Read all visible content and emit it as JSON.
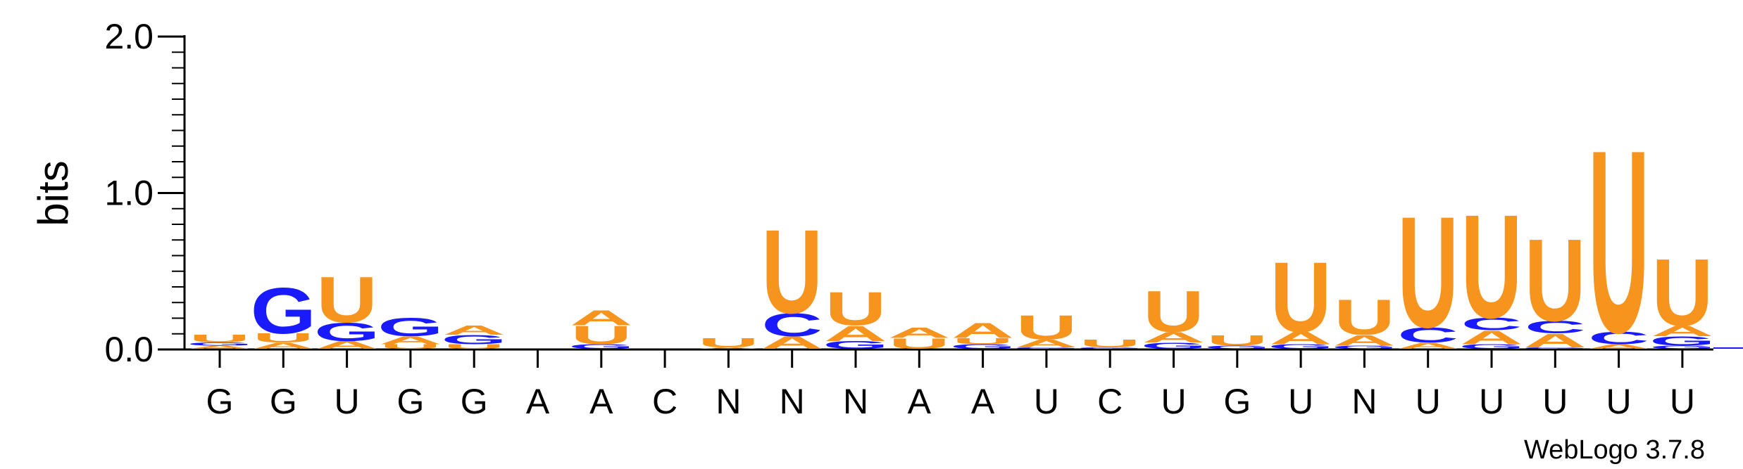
{
  "chart_data": {
    "type": "sequence-logo",
    "ylabel": "bits",
    "ylim": [
      0,
      2.0
    ],
    "yticks": [
      "0.0",
      "1.0",
      "2.0"
    ],
    "credit": "WebLogo 3.7.8",
    "colors": {
      "U": "#f7941d",
      "A": "#f7941d",
      "G": "#1a1aff",
      "C": "#1a1aff"
    },
    "positions": [
      {
        "label": "G",
        "stack": [
          {
            "letter": "A",
            "h": 0.02
          },
          {
            "letter": "G",
            "h": 0.02
          },
          {
            "letter": "U",
            "h": 0.05
          }
        ]
      },
      {
        "label": "G",
        "stack": [
          {
            "letter": "A",
            "h": 0.04
          },
          {
            "letter": "U",
            "h": 0.06
          },
          {
            "letter": "G",
            "h": 0.3
          }
        ]
      },
      {
        "label": "U",
        "stack": [
          {
            "letter": "A",
            "h": 0.05
          },
          {
            "letter": "G",
            "h": 0.12
          },
          {
            "letter": "U",
            "h": 0.3
          }
        ]
      },
      {
        "label": "G",
        "stack": [
          {
            "letter": "U",
            "h": 0.03
          },
          {
            "letter": "A",
            "h": 0.05
          },
          {
            "letter": "G",
            "h": 0.12
          }
        ]
      },
      {
        "label": "G",
        "stack": [
          {
            "letter": "U",
            "h": 0.03
          },
          {
            "letter": "G",
            "h": 0.06
          },
          {
            "letter": "A",
            "h": 0.06
          }
        ]
      },
      {
        "label": "A",
        "stack": []
      },
      {
        "label": "A",
        "stack": [
          {
            "letter": "G",
            "h": 0.03
          },
          {
            "letter": "U",
            "h": 0.12
          },
          {
            "letter": "A",
            "h": 0.1
          }
        ]
      },
      {
        "label": "C",
        "stack": []
      },
      {
        "label": "N",
        "stack": [
          {
            "letter": "A",
            "h": 0.01
          },
          {
            "letter": "U",
            "h": 0.06
          }
        ]
      },
      {
        "label": "N",
        "stack": [
          {
            "letter": "A",
            "h": 0.08
          },
          {
            "letter": "C",
            "h": 0.15
          },
          {
            "letter": "U",
            "h": 0.55
          }
        ]
      },
      {
        "label": "N",
        "stack": [
          {
            "letter": "G",
            "h": 0.05
          },
          {
            "letter": "A",
            "h": 0.1
          },
          {
            "letter": "U",
            "h": 0.22
          }
        ]
      },
      {
        "label": "A",
        "stack": [
          {
            "letter": "U",
            "h": 0.07
          },
          {
            "letter": "A",
            "h": 0.07
          }
        ]
      },
      {
        "label": "A",
        "stack": [
          {
            "letter": "G",
            "h": 0.03
          },
          {
            "letter": "U",
            "h": 0.04
          },
          {
            "letter": "A",
            "h": 0.1
          }
        ]
      },
      {
        "label": "U",
        "stack": [
          {
            "letter": "G",
            "h": 0.01
          },
          {
            "letter": "A",
            "h": 0.05
          },
          {
            "letter": "U",
            "h": 0.16
          }
        ]
      },
      {
        "label": "C",
        "stack": [
          {
            "letter": "G",
            "h": 0.01
          },
          {
            "letter": "U",
            "h": 0.05
          }
        ]
      },
      {
        "label": "U",
        "stack": [
          {
            "letter": "G",
            "h": 0.04
          },
          {
            "letter": "A",
            "h": 0.07
          },
          {
            "letter": "U",
            "h": 0.27
          }
        ]
      },
      {
        "label": "G",
        "stack": [
          {
            "letter": "G",
            "h": 0.02
          },
          {
            "letter": "U",
            "h": 0.07
          }
        ]
      },
      {
        "label": "U",
        "stack": [
          {
            "letter": "G",
            "h": 0.03
          },
          {
            "letter": "A",
            "h": 0.08
          },
          {
            "letter": "U",
            "h": 0.46
          }
        ]
      },
      {
        "label": "N",
        "stack": [
          {
            "letter": "G",
            "h": 0.02
          },
          {
            "letter": "A",
            "h": 0.07
          },
          {
            "letter": "U",
            "h": 0.23
          }
        ]
      },
      {
        "label": "U",
        "stack": [
          {
            "letter": "A",
            "h": 0.04
          },
          {
            "letter": "C",
            "h": 0.1
          },
          {
            "letter": "U",
            "h": 0.73
          }
        ]
      },
      {
        "label": "U",
        "stack": [
          {
            "letter": "G",
            "h": 0.03
          },
          {
            "letter": "A",
            "h": 0.09
          },
          {
            "letter": "C",
            "h": 0.08
          },
          {
            "letter": "U",
            "h": 0.68
          }
        ]
      },
      {
        "label": "U",
        "stack": [
          {
            "letter": "G",
            "h": 0.01
          },
          {
            "letter": "A",
            "h": 0.09
          },
          {
            "letter": "C",
            "h": 0.08
          },
          {
            "letter": "U",
            "h": 0.54
          }
        ]
      },
      {
        "label": "U",
        "stack": [
          {
            "letter": "A",
            "h": 0.03
          },
          {
            "letter": "C",
            "h": 0.08
          },
          {
            "letter": "U",
            "h": 1.2
          }
        ]
      },
      {
        "label": "U",
        "stack": [
          {
            "letter": "G",
            "h": 0.02
          },
          {
            "letter": "G",
            "h": 0.06
          },
          {
            "letter": "A",
            "h": 0.07
          },
          {
            "letter": "U",
            "h": 0.44
          }
        ]
      }
    ]
  }
}
